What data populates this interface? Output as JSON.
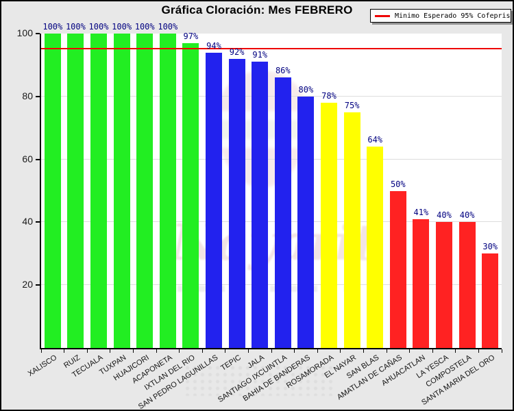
{
  "title": "Gráfica Cloración: Mes FEBRERO",
  "legend": {
    "label": "Minimo Esperado 95% Cofepris"
  },
  "watermark": {
    "text": "Nayarit"
  },
  "colors": {
    "green": "#22EE22",
    "blue": "#2222EE",
    "yellow": "#FFFF00",
    "red": "#FF2222",
    "threshold": "#EE0000",
    "value_label": "#000080",
    "background": "#E8E8E8",
    "plot_bg": "#FFFFFF",
    "grid": "#DDDDDD",
    "axis": "#000000"
  },
  "chart_data": {
    "type": "bar",
    "title": "Gráfica Cloración: Mes FEBRERO",
    "categories": [
      "XALISCO",
      "RUIZ",
      "TECUALA",
      "TUXPAN",
      "HUAJICORI",
      "ACAPONETA",
      "IXTLAN DEL RIO",
      "SAN PEDRO LAGUNILLAS",
      "TEPIC",
      "JALA",
      "SANTIAGO IXCUINTLA",
      "BAHIA DE BANDERAS",
      "ROSAMORADA",
      "EL NAYAR",
      "SAN BLAS",
      "AMATLAN DE CAÑAS",
      "AHUACATLAN",
      "LA YESCA",
      "COMPOSTELA",
      "SANTA MARIA DEL ORO"
    ],
    "values": [
      100,
      100,
      100,
      100,
      100,
      100,
      97,
      94,
      92,
      91,
      86,
      80,
      78,
      75,
      64,
      50,
      41,
      40,
      40,
      30
    ],
    "bar_colors": [
      "green",
      "green",
      "green",
      "green",
      "green",
      "green",
      "green",
      "blue",
      "blue",
      "blue",
      "blue",
      "blue",
      "yellow",
      "yellow",
      "yellow",
      "red",
      "red",
      "red",
      "red",
      "red"
    ],
    "value_suffix": "%",
    "ylim": [
      0,
      100
    ],
    "yticks": [
      20,
      40,
      60,
      80,
      100
    ],
    "grid": "horizontal",
    "legend_position": "top-right",
    "threshold": {
      "value": 95,
      "label": "Minimo Esperado 95% Cofepris"
    }
  }
}
